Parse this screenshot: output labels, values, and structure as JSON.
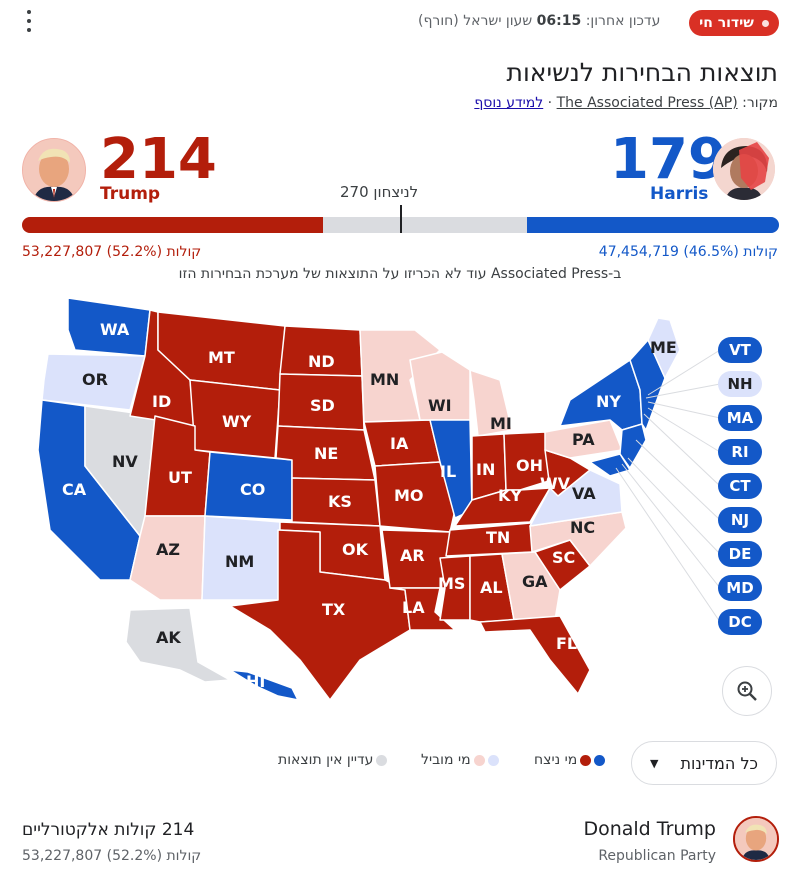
{
  "header": {
    "live_label": "שידור חי",
    "updated_text": "עדכון אחרון: ",
    "updated_time": "06:15",
    "updated_zone": " שעון ישראל (חורף)",
    "title": "תוצאות הבחירות לנשיאות",
    "source_prefix": "מקור: ",
    "source_name": "The Associated Press (AP)",
    "source_sep": " · ",
    "learn_more": "למידע נוסף"
  },
  "race": {
    "trump": {
      "name": "Trump",
      "electoral": "214",
      "votes": "53,227,807 קולות (52.2%)",
      "ev_fraction": 0.3978
    },
    "harris": {
      "name": "Harris",
      "electoral": "179",
      "votes": "47,454,719 קולות (46.5%)",
      "ev_fraction": 0.3327
    },
    "to_win": "270 לניצחון",
    "note": "ב-Associated Press עוד לא הכריזו על התוצאות של מערכת הבחירות הזו"
  },
  "colors": {
    "rep_win": "#b31e0b",
    "dem_win": "#1358c8",
    "rep_lead": "#f7d4cf",
    "dem_lead": "#dbe2fb",
    "no_result": "#dadce0"
  },
  "map": {
    "states": [
      {
        "abbr": "WA",
        "status": "dem_win"
      },
      {
        "abbr": "OR",
        "status": "dem_lead"
      },
      {
        "abbr": "CA",
        "status": "dem_win"
      },
      {
        "abbr": "NV",
        "status": "no_result"
      },
      {
        "abbr": "ID",
        "status": "rep_win"
      },
      {
        "abbr": "MT",
        "status": "rep_win"
      },
      {
        "abbr": "WY",
        "status": "rep_win"
      },
      {
        "abbr": "UT",
        "status": "rep_win"
      },
      {
        "abbr": "AZ",
        "status": "rep_lead"
      },
      {
        "abbr": "CO",
        "status": "dem_win"
      },
      {
        "abbr": "NM",
        "status": "dem_lead"
      },
      {
        "abbr": "ND",
        "status": "rep_win"
      },
      {
        "abbr": "SD",
        "status": "rep_win"
      },
      {
        "abbr": "NE",
        "status": "rep_win"
      },
      {
        "abbr": "KS",
        "status": "rep_win"
      },
      {
        "abbr": "OK",
        "status": "rep_win"
      },
      {
        "abbr": "TX",
        "status": "rep_win"
      },
      {
        "abbr": "MN",
        "status": "rep_lead"
      },
      {
        "abbr": "IA",
        "status": "rep_win"
      },
      {
        "abbr": "MO",
        "status": "rep_win"
      },
      {
        "abbr": "AR",
        "status": "rep_win"
      },
      {
        "abbr": "LA",
        "status": "rep_win"
      },
      {
        "abbr": "WI",
        "status": "rep_lead"
      },
      {
        "abbr": "IL",
        "status": "dem_win"
      },
      {
        "abbr": "MI",
        "status": "rep_lead"
      },
      {
        "abbr": "IN",
        "status": "rep_win"
      },
      {
        "abbr": "OH",
        "status": "rep_win"
      },
      {
        "abbr": "KY",
        "status": "rep_win"
      },
      {
        "abbr": "TN",
        "status": "rep_win"
      },
      {
        "abbr": "MS",
        "status": "rep_win"
      },
      {
        "abbr": "AL",
        "status": "rep_win"
      },
      {
        "abbr": "GA",
        "status": "rep_lead"
      },
      {
        "abbr": "FL",
        "status": "rep_win"
      },
      {
        "abbr": "SC",
        "status": "rep_win"
      },
      {
        "abbr": "NC",
        "status": "rep_lead"
      },
      {
        "abbr": "VA",
        "status": "dem_lead"
      },
      {
        "abbr": "WV",
        "status": "rep_win"
      },
      {
        "abbr": "PA",
        "status": "rep_lead"
      },
      {
        "abbr": "NY",
        "status": "dem_win"
      },
      {
        "abbr": "ME",
        "status": "dem_lead"
      },
      {
        "abbr": "AK",
        "status": "no_result"
      },
      {
        "abbr": "HI",
        "status": "dem_win"
      }
    ],
    "small_states": [
      {
        "abbr": "VT",
        "status": "dem_win"
      },
      {
        "abbr": "NH",
        "status": "dem_lead"
      },
      {
        "abbr": "MA",
        "status": "dem_win"
      },
      {
        "abbr": "RI",
        "status": "dem_win"
      },
      {
        "abbr": "CT",
        "status": "dem_win"
      },
      {
        "abbr": "NJ",
        "status": "dem_win"
      },
      {
        "abbr": "DE",
        "status": "dem_win"
      },
      {
        "abbr": "MD",
        "status": "dem_win"
      },
      {
        "abbr": "DC",
        "status": "dem_win"
      }
    ],
    "zoom_icon": "zoom-in-icon"
  },
  "legend": {
    "dropdown_label": "כל המדינות",
    "winner": "מי ניצח",
    "leading": "מי מוביל",
    "no_results": "עדיין אין תוצאות"
  },
  "bottom": {
    "name": "Donald Trump",
    "party": "Republican Party",
    "ev_number": "214",
    "ev_label": " קולות אלקטורליים",
    "popular": "53,227,807 קולות (52.2%)"
  }
}
